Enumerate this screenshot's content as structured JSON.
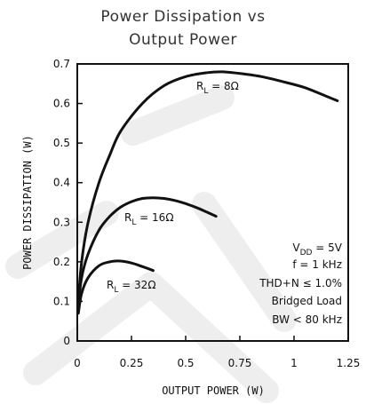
{
  "chart_data": {
    "type": "line",
    "title_lines": [
      "Power Dissipation vs",
      "Output Power"
    ],
    "xlabel": "OUTPUT POWER (W)",
    "ylabel": "POWER DISSIPATION (W)",
    "xlim": [
      0,
      1.25
    ],
    "ylim": [
      0,
      0.7
    ],
    "x_ticks": [
      "0",
      "0.25",
      "0.5",
      "0.75",
      "1",
      "1.25"
    ],
    "y_ticks": [
      "0",
      "0.1",
      "0.2",
      "0.3",
      "0.4",
      "0.5",
      "0.6",
      "0.7"
    ],
    "grid": false,
    "line_color": "#111111",
    "series": [
      {
        "name": "RL = 8Ω",
        "label_main": "R",
        "label_sub": "L",
        "label_rest": " = 8Ω",
        "x": [
          0.005,
          0.02,
          0.05,
          0.1,
          0.15,
          0.2,
          0.3,
          0.4,
          0.5,
          0.6,
          0.67,
          0.75,
          0.85,
          0.95,
          1.05,
          1.15,
          1.2
        ],
        "y": [
          0.1,
          0.2,
          0.3,
          0.4,
          0.47,
          0.53,
          0.6,
          0.645,
          0.668,
          0.678,
          0.68,
          0.676,
          0.668,
          0.655,
          0.64,
          0.618,
          0.607
        ]
      },
      {
        "name": "RL = 16Ω",
        "label_main": "R",
        "label_sub": "L",
        "label_rest": " = 16Ω",
        "x": [
          0.005,
          0.02,
          0.05,
          0.1,
          0.15,
          0.2,
          0.25,
          0.3,
          0.35,
          0.4,
          0.45,
          0.5,
          0.55,
          0.6,
          0.64
        ],
        "y": [
          0.09,
          0.16,
          0.22,
          0.28,
          0.315,
          0.338,
          0.352,
          0.36,
          0.362,
          0.36,
          0.355,
          0.347,
          0.337,
          0.325,
          0.315
        ]
      },
      {
        "name": "RL = 32Ω",
        "label_main": "R",
        "label_sub": "L",
        "label_rest": " = 32Ω",
        "x": [
          0.005,
          0.02,
          0.05,
          0.1,
          0.15,
          0.2,
          0.25,
          0.3,
          0.35
        ],
        "y": [
          0.07,
          0.12,
          0.16,
          0.19,
          0.2,
          0.202,
          0.197,
          0.188,
          0.178
        ]
      }
    ],
    "annotations": [
      {
        "main": "V",
        "sub": "DD",
        "rest": " = 5V"
      },
      {
        "main": "f = 1 kHz",
        "sub": "",
        "rest": ""
      },
      {
        "main": "THD+N ≤ 1.0%",
        "sub": "",
        "rest": ""
      },
      {
        "main": "Bridged Load",
        "sub": "",
        "rest": ""
      },
      {
        "main": "BW < 80 kHz",
        "sub": "",
        "rest": ""
      }
    ]
  }
}
